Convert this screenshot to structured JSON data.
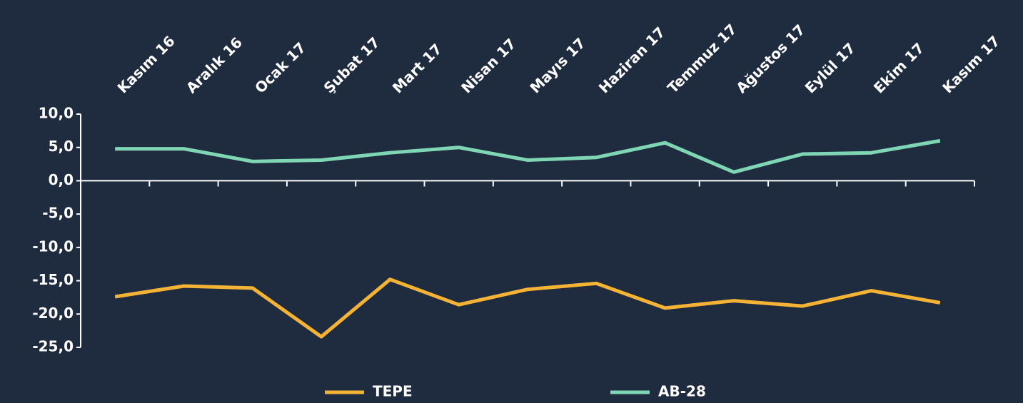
{
  "chart_data": {
    "type": "line",
    "categories": [
      "Kasım 16",
      "Aralık 16",
      "Ocak 17",
      "Şubat 17",
      "Mart 17",
      "Nisan 17",
      "Mayıs 17",
      "Haziran 17",
      "Temmuz 17",
      "Ağustos 17",
      "Eylül 17",
      "Ekim 17",
      "Kasım 17"
    ],
    "series": [
      {
        "name": "TEPE",
        "color": "#f5b335",
        "values": [
          -17.4,
          -15.8,
          -16.1,
          -23.4,
          -14.8,
          -18.6,
          -16.3,
          -15.4,
          -19.1,
          -18.0,
          -18.8,
          -16.5,
          -18.3
        ]
      },
      {
        "name": "AB-28",
        "color": "#7fd6b4",
        "values": [
          4.8,
          4.8,
          2.9,
          3.1,
          4.2,
          5.0,
          3.1,
          3.5,
          5.7,
          1.3,
          4.0,
          4.2,
          6.0
        ]
      }
    ],
    "ylim": [
      -25,
      10
    ],
    "yticks": [
      {
        "value": 10,
        "label": "10,0"
      },
      {
        "value": 5,
        "label": "5,0"
      },
      {
        "value": 0,
        "label": "0,0"
      },
      {
        "value": -5,
        "label": "-5,0"
      },
      {
        "value": -10,
        "label": "-10,0"
      },
      {
        "value": -15,
        "label": "-15,0"
      },
      {
        "value": -20,
        "label": "-20,0"
      },
      {
        "value": -25,
        "label": "-25,0"
      }
    ],
    "grid": false,
    "legend": "bottom"
  }
}
